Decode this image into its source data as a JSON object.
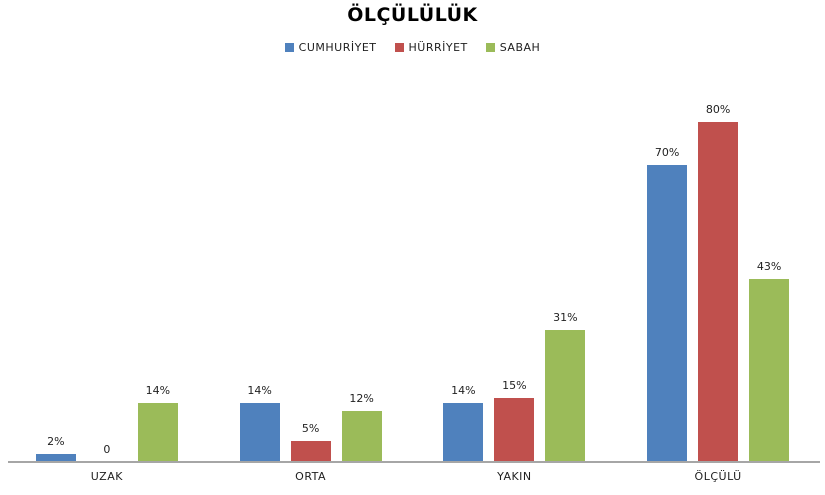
{
  "chart_data": {
    "type": "bar",
    "title": "ÖLÇÜLÜLÜK",
    "categories": [
      "UZAK",
      "ORTA",
      "YAKIN",
      "ÖLÇÜLÜ"
    ],
    "series": [
      {
        "name": "CUMHURİYET",
        "color": "#4f81bd",
        "values": [
          2,
          14,
          14,
          70
        ],
        "labels": [
          "2%",
          "14%",
          "14%",
          "70%"
        ]
      },
      {
        "name": "HÜRRİYET",
        "color": "#c0504d",
        "values": [
          0,
          5,
          15,
          80
        ],
        "labels": [
          "0",
          "5%",
          "15%",
          "80%"
        ]
      },
      {
        "name": "SABAH",
        "color": "#9bbb59",
        "values": [
          14,
          12,
          31,
          43
        ],
        "labels": [
          "14%",
          "12%",
          "31%",
          "43%"
        ]
      }
    ],
    "unit": "%",
    "ylim": [
      0,
      80
    ],
    "grid": false,
    "y_axis_shown": false,
    "legend_position": "top",
    "axis_color": "#a6a6a6",
    "label_color": "#1f1f1f",
    "background": "#ffffff"
  }
}
